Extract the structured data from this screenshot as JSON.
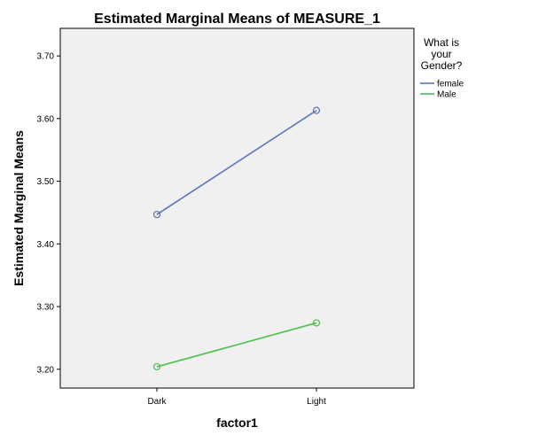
{
  "chart_data": {
    "type": "line",
    "title": "Estimated Marginal Means of MEASURE_1",
    "xlabel": "factor1",
    "ylabel": "Estimated Marginal Means",
    "categories": [
      "Dark",
      "Light"
    ],
    "yticks": [
      "3.20",
      "3.30",
      "3.40",
      "3.50",
      "3.60",
      "3.70"
    ],
    "ylim": [
      3.17,
      3.744
    ],
    "grid": false,
    "legend": {
      "title_lines": [
        "What is",
        "your",
        "Gender?"
      ],
      "placement": "right"
    },
    "series": [
      {
        "name": "female",
        "color": "#5b73c0",
        "values": [
          3.447,
          3.613
        ]
      },
      {
        "name": "Male",
        "color": "#4cc04c",
        "values": [
          3.204,
          3.274
        ]
      }
    ],
    "plot_background": "#f0f0f0"
  }
}
